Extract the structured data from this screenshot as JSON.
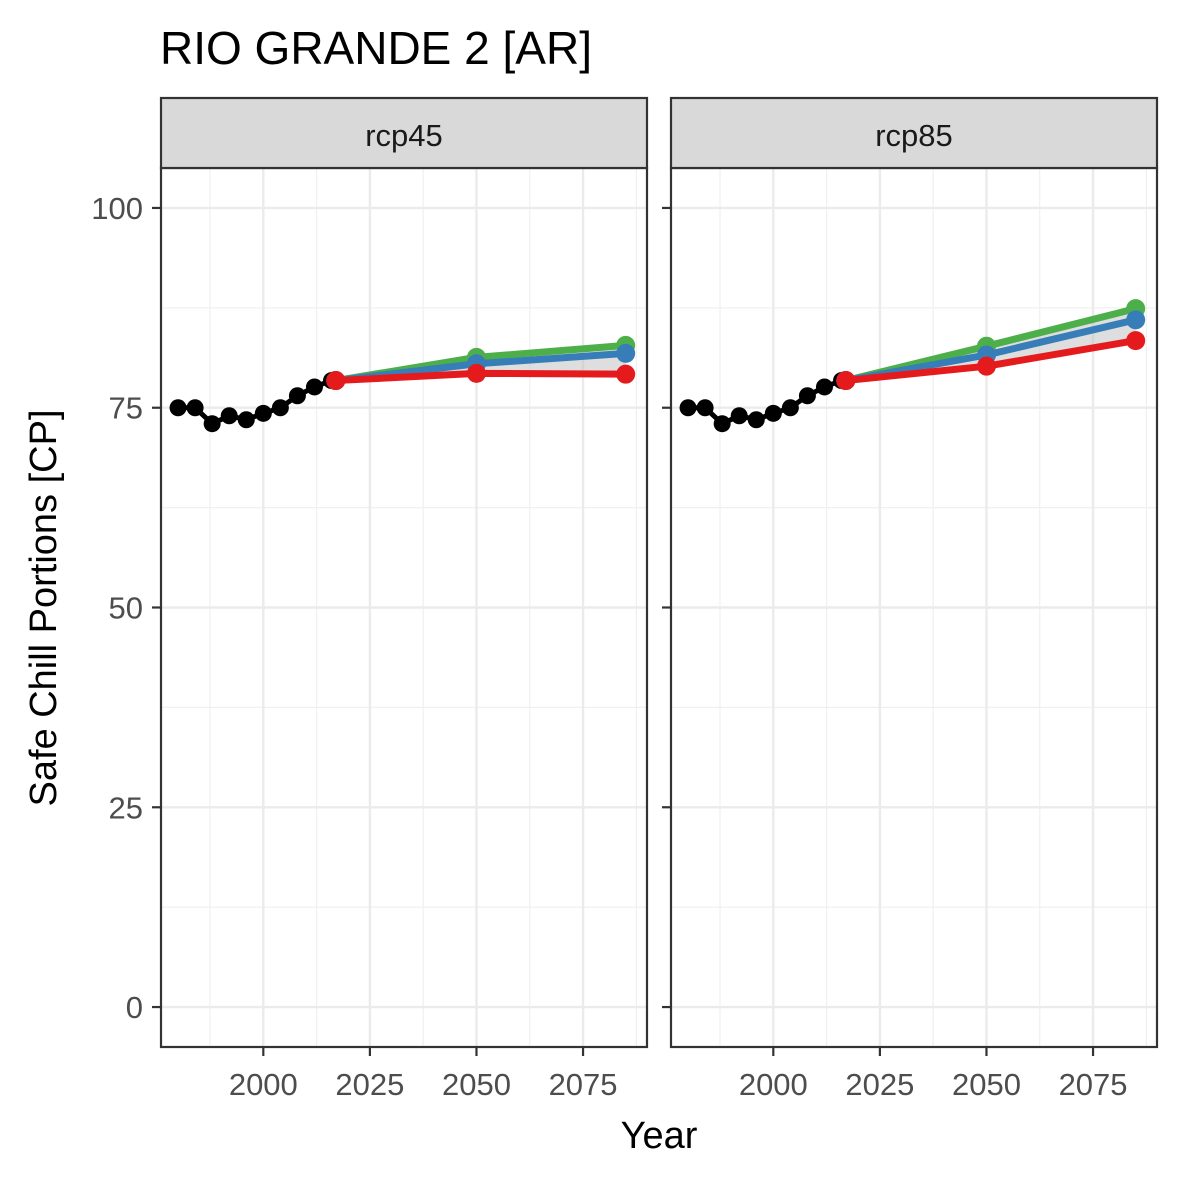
{
  "chart_data": {
    "type": "line",
    "title": "RIO GRANDE 2 [AR]",
    "xlabel": "Year",
    "ylabel": "Safe Chill Portions [CP]",
    "xlim": [
      1976,
      2090
    ],
    "ylim": [
      -5,
      105
    ],
    "x_ticks": [
      2000,
      2025,
      2050,
      2075
    ],
    "y_ticks": [
      0,
      25,
      50,
      75,
      100
    ],
    "grid": true,
    "panels": [
      {
        "label": "rcp45",
        "historic": {
          "x": [
            1980,
            1984,
            1988,
            1992,
            1996,
            2000,
            2004,
            2008,
            2012,
            2016
          ],
          "y": [
            75.0,
            75.0,
            73.0,
            74.0,
            73.5,
            74.3,
            75.0,
            76.5,
            77.6,
            78.4
          ]
        },
        "series": [
          {
            "color": "#4DAF4A",
            "x": [
              2017,
              2050,
              2085
            ],
            "y": [
              78.4,
              81.3,
              82.8
            ]
          },
          {
            "color": "#377EB8",
            "x": [
              2017,
              2050,
              2085
            ],
            "y": [
              78.4,
              80.5,
              81.8
            ]
          },
          {
            "color": "#E41A1C",
            "x": [
              2017,
              2050,
              2085
            ],
            "y": [
              78.4,
              79.3,
              79.2
            ]
          }
        ]
      },
      {
        "label": "rcp85",
        "historic": {
          "x": [
            1980,
            1984,
            1988,
            1992,
            1996,
            2000,
            2004,
            2008,
            2012,
            2016
          ],
          "y": [
            75.0,
            75.0,
            73.0,
            74.0,
            73.5,
            74.3,
            75.0,
            76.5,
            77.6,
            78.4
          ]
        },
        "series": [
          {
            "color": "#4DAF4A",
            "x": [
              2017,
              2050,
              2085
            ],
            "y": [
              78.4,
              82.7,
              87.4
            ]
          },
          {
            "color": "#377EB8",
            "x": [
              2017,
              2050,
              2085
            ],
            "y": [
              78.4,
              81.6,
              86.0
            ]
          },
          {
            "color": "#E41A1C",
            "x": [
              2017,
              2050,
              2085
            ],
            "y": [
              78.4,
              80.2,
              83.4
            ]
          }
        ]
      }
    ]
  }
}
